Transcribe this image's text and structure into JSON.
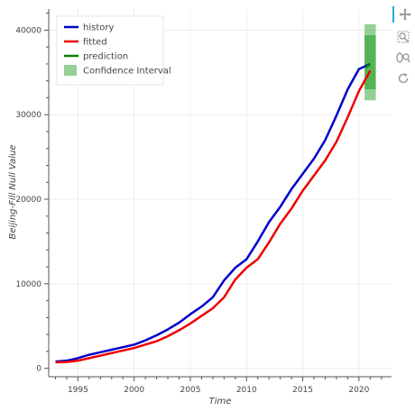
{
  "chart_data": {
    "type": "line",
    "title": "",
    "xlabel": "Time",
    "ylabel": "Beijing-Fill Null Value",
    "xlim": [
      1992.4,
      2022.9
    ],
    "ylim": [
      -1000,
      42500
    ],
    "x_ticks": [
      1995,
      2000,
      2005,
      2010,
      2015,
      2020
    ],
    "y_ticks": [
      0,
      10000,
      20000,
      30000,
      40000
    ],
    "grid": true,
    "legend_position": "top-left",
    "x": [
      1993,
      1994,
      1995,
      1996,
      1997,
      1998,
      1999,
      2000,
      2001,
      2002,
      2003,
      2004,
      2005,
      2006,
      2007,
      2008,
      2009,
      2010,
      2011,
      2012,
      2013,
      2014,
      2015,
      2016,
      2017,
      2018,
      2019,
      2020,
      2021
    ],
    "series": [
      {
        "name": "history",
        "color": "#0000cc",
        "values": [
          800,
          900,
          1200,
          1600,
          1900,
          2200,
          2500,
          2800,
          3300,
          3900,
          4600,
          5400,
          6400,
          7300,
          8400,
          10400,
          11900,
          12900,
          15000,
          17300,
          19100,
          21200,
          23000,
          24800,
          27000,
          29900,
          33000,
          35400,
          36000
        ]
      },
      {
        "name": "fitted",
        "color": "#ee0000",
        "values": [
          700,
          750,
          900,
          1200,
          1500,
          1800,
          2100,
          2400,
          2800,
          3200,
          3800,
          4500,
          5300,
          6200,
          7100,
          8400,
          10500,
          11900,
          12900,
          14900,
          17100,
          18900,
          21000,
          22800,
          24600,
          26800,
          29700,
          32800,
          35200
        ]
      },
      {
        "name": "prediction",
        "color": "#008000",
        "values": [
          null,
          null,
          null,
          null,
          null,
          null,
          null,
          null,
          null,
          null,
          null,
          null,
          null,
          null,
          null,
          null,
          null,
          null,
          null,
          null,
          null,
          null,
          null,
          null,
          null,
          null,
          null,
          null,
          36000
        ]
      }
    ],
    "prediction_x": [
      2020.6,
      2021
    ],
    "prediction_values": [
      35600,
      36000
    ],
    "confidence_interval": {
      "name": "Confidence Interval",
      "color": "#2ca02c",
      "x_range": [
        2020.5,
        2021.5
      ],
      "outer": [
        31700,
        40700
      ],
      "inner": [
        33000,
        39400
      ]
    }
  },
  "toolbar": {
    "icons": [
      "pan-icon",
      "box-zoom-icon",
      "wheel-zoom-icon",
      "reset-icon"
    ]
  }
}
